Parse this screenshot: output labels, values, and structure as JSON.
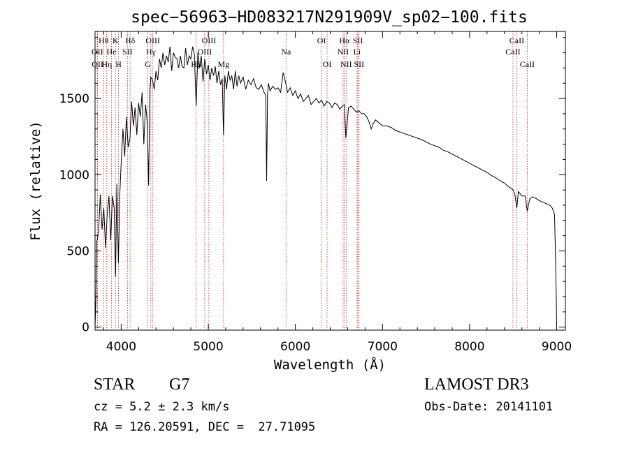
{
  "chart_data": {
    "type": "line",
    "title": "spec−56963−HD083217N291909V_sp02−100.fits",
    "xlabel": "Wavelength (Å)",
    "ylabel": "Flux (relative)",
    "xlim": [
      3700,
      9100
    ],
    "ylim": [
      -20,
      1940
    ],
    "xticks": [
      4000,
      5000,
      6000,
      7000,
      8000,
      9000
    ],
    "yticks": [
      0,
      500,
      1000,
      1500
    ],
    "grid": false,
    "series": [
      {
        "name": "spectrum",
        "x": [
          3700,
          3710,
          3720,
          3740,
          3760,
          3780,
          3800,
          3820,
          3840,
          3860,
          3880,
          3900,
          3920,
          3935,
          3950,
          3968,
          3985,
          4000,
          4020,
          4040,
          4060,
          4080,
          4101,
          4120,
          4140,
          4160,
          4180,
          4200,
          4220,
          4240,
          4260,
          4280,
          4300,
          4315,
          4330,
          4340,
          4360,
          4380,
          4400,
          4420,
          4440,
          4460,
          4480,
          4500,
          4520,
          4540,
          4560,
          4580,
          4600,
          4620,
          4640,
          4660,
          4680,
          4700,
          4720,
          4740,
          4760,
          4780,
          4800,
          4820,
          4840,
          4861,
          4880,
          4900,
          4920,
          4940,
          4960,
          4980,
          5000,
          5020,
          5040,
          5060,
          5080,
          5100,
          5120,
          5140,
          5160,
          5175,
          5190,
          5210,
          5230,
          5250,
          5270,
          5290,
          5310,
          5330,
          5350,
          5370,
          5400,
          5430,
          5460,
          5490,
          5520,
          5550,
          5580,
          5610,
          5640,
          5660,
          5670,
          5680,
          5690,
          5710,
          5740,
          5770,
          5800,
          5830,
          5860,
          5890,
          5910,
          5940,
          5970,
          6000,
          6030,
          6060,
          6090,
          6120,
          6150,
          6180,
          6210,
          6240,
          6270,
          6300,
          6330,
          6360,
          6390,
          6420,
          6450,
          6480,
          6510,
          6540,
          6563,
          6580,
          6610,
          6640,
          6670,
          6700,
          6730,
          6760,
          6790,
          6820,
          6850,
          6870,
          6890,
          6920,
          6960,
          7000,
          7050,
          7100,
          7150,
          7200,
          7250,
          7300,
          7350,
          7400,
          7450,
          7500,
          7550,
          7600,
          7650,
          7700,
          7750,
          7800,
          7850,
          7900,
          7950,
          8000,
          8050,
          8100,
          8150,
          8200,
          8250,
          8300,
          8350,
          8400,
          8450,
          8500,
          8520,
          8542,
          8560,
          8600,
          8640,
          8662,
          8690,
          8720,
          8760,
          8800,
          8840,
          8880,
          8920,
          8950,
          8975,
          8985,
          8995,
          9000
        ],
        "y": [
          0,
          180,
          560,
          620,
          870,
          640,
          780,
          520,
          740,
          860,
          570,
          860,
          780,
          330,
          940,
          420,
          880,
          1080,
          1300,
          1120,
          1380,
          1180,
          1240,
          1480,
          1320,
          1440,
          1260,
          1470,
          1380,
          1540,
          1200,
          1460,
          1340,
          930,
          1560,
          1640,
          1620,
          1560,
          1680,
          1620,
          1760,
          1700,
          1800,
          1720,
          1780,
          1740,
          1840,
          1680,
          1800,
          1770,
          1760,
          1700,
          1780,
          1710,
          1700,
          1830,
          1720,
          1780,
          1760,
          1840,
          1790,
          1450,
          1800,
          1700,
          1780,
          1610,
          1760,
          1660,
          1720,
          1620,
          1700,
          1650,
          1710,
          1600,
          1680,
          1590,
          1630,
          1260,
          1650,
          1560,
          1680,
          1620,
          1650,
          1560,
          1680,
          1580,
          1650,
          1600,
          1640,
          1560,
          1620,
          1590,
          1630,
          1570,
          1560,
          1590,
          1540,
          1520,
          960,
          1520,
          1600,
          1550,
          1580,
          1560,
          1570,
          1540,
          1670,
          1600,
          1540,
          1570,
          1520,
          1550,
          1500,
          1530,
          1480,
          1500,
          1520,
          1460,
          1480,
          1500,
          1470,
          1490,
          1450,
          1480,
          1470,
          1440,
          1470,
          1460,
          1430,
          1450,
          1460,
          1240,
          1440,
          1450,
          1430,
          1410,
          1420,
          1400,
          1400,
          1380,
          1340,
          1300,
          1330,
          1360,
          1340,
          1320,
          1320,
          1310,
          1290,
          1280,
          1270,
          1260,
          1250,
          1240,
          1230,
          1215,
          1200,
          1190,
          1180,
          1160,
          1150,
          1135,
          1120,
          1105,
          1090,
          1075,
          1060,
          1045,
          1030,
          1015,
          995,
          980,
          960,
          945,
          920,
          900,
          870,
          780,
          890,
          860,
          860,
          760,
          840,
          855,
          845,
          830,
          820,
          810,
          800,
          780,
          740,
          500,
          200,
          20
        ]
      }
    ],
    "line_markers": [
      {
        "label": "Hθ",
        "x": 3798,
        "row": 1
      },
      {
        "label": "OII",
        "x": 3727,
        "row": 2
      },
      {
        "label": "OII",
        "x": 3729,
        "row": 3
      },
      {
        "label": "He",
        "x": 3889,
        "row": 2
      },
      {
        "label": "Hη",
        "x": 3835,
        "row": 3
      },
      {
        "label": "K",
        "x": 3934,
        "row": 1
      },
      {
        "label": "SII",
        "x": 4072,
        "row": 2
      },
      {
        "label": "H",
        "x": 3969,
        "row": 3
      },
      {
        "label": "Hδ",
        "x": 4102,
        "row": 1
      },
      {
        "label": "OIII",
        "x": 4363,
        "row": 1
      },
      {
        "label": "Hγ",
        "x": 4341,
        "row": 2
      },
      {
        "label": "G",
        "x": 4305,
        "row": 3
      },
      {
        "label": "OIII",
        "x": 5007,
        "row": 1
      },
      {
        "label": "OIII",
        "x": 4959,
        "row": 2
      },
      {
        "label": "Hβ",
        "x": 4861,
        "row": 3
      },
      {
        "label": "Mg",
        "x": 5175,
        "row": 3
      },
      {
        "label": "Na",
        "x": 5893,
        "row": 2
      },
      {
        "label": "OI",
        "x": 6300,
        "row": 1
      },
      {
        "label": "OI",
        "x": 6364,
        "row": 3
      },
      {
        "label": "Hα",
        "x": 6563,
        "row": 1
      },
      {
        "label": "NII",
        "x": 6548,
        "row": 2
      },
      {
        "label": "NII",
        "x": 6583,
        "row": 3
      },
      {
        "label": "SII",
        "x": 6717,
        "row": 1
      },
      {
        "label": "Li",
        "x": 6708,
        "row": 2
      },
      {
        "label": "SII",
        "x": 6731,
        "row": 3
      },
      {
        "label": "CaII",
        "x": 8542,
        "row": 1
      },
      {
        "label": "CaII",
        "x": 8498,
        "row": 2
      },
      {
        "label": "CaII",
        "x": 8662,
        "row": 3
      }
    ]
  },
  "info": {
    "object_class": "STAR",
    "subclass": "G7",
    "redshift_text": "cz = 5.2 ± 2.3 km/s",
    "coords_text": "RA = 126.20591, DEC =  27.71095",
    "survey": "LAMOST DR3",
    "obs_date": "Obs-Date: 20141101"
  }
}
